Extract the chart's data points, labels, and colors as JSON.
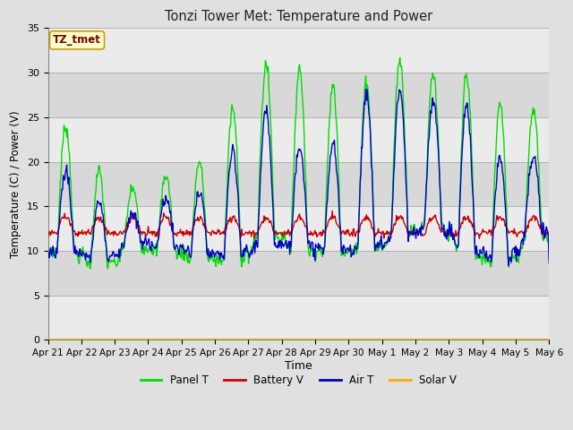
{
  "title": "Tonzi Tower Met: Temperature and Power",
  "xlabel": "Time",
  "ylabel": "Temperature (C) / Power (V)",
  "ylim": [
    0,
    35
  ],
  "yticks": [
    0,
    5,
    10,
    15,
    20,
    25,
    30,
    35
  ],
  "xtick_labels": [
    "Apr 21",
    "Apr 22",
    "Apr 23",
    "Apr 24",
    "Apr 25",
    "Apr 26",
    "Apr 27",
    "Apr 28",
    "Apr 29",
    "Apr 30",
    "May 1",
    "May 2",
    "May 3",
    "May 4",
    "May 5",
    "May 6"
  ],
  "outer_bg_color": "#e0e0e0",
  "plot_bg_color": "#d8d8d8",
  "annotation_text": "TZ_tmet",
  "annotation_bg": "#ffffcc",
  "annotation_border": "#c8a000",
  "annotation_text_color": "#800000",
  "legend_entries": [
    "Panel T",
    "Battery V",
    "Air T",
    "Solar V"
  ],
  "legend_colors": [
    "#00dd00",
    "#cc0000",
    "#0000cc",
    "#ffaa00"
  ],
  "panel_t_color": "#00dd00",
  "battery_v_color": "#cc0000",
  "air_t_color": "#0000cc",
  "solar_v_color": "#ffaa00",
  "n_days": 15,
  "points_per_day": 48
}
